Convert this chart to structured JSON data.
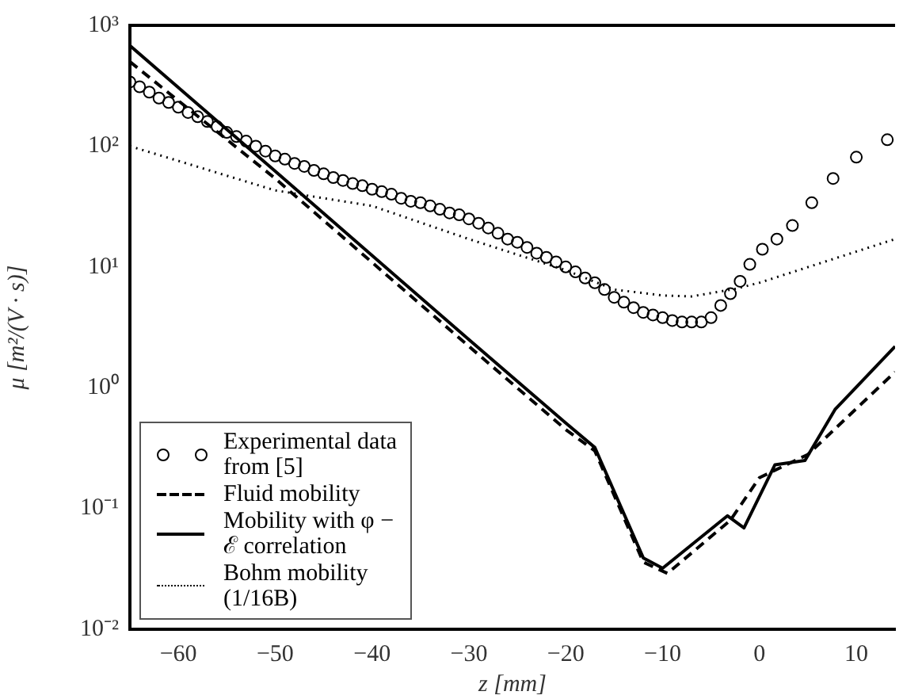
{
  "chart_data": {
    "type": "line",
    "xlabel": "z [mm]",
    "ylabel": "μ [m²/(V · s)]",
    "xlim": [
      -65,
      14
    ],
    "xticks": [
      -60,
      -50,
      -40,
      -30,
      -20,
      -10,
      0,
      10
    ],
    "ylim": [
      0.01,
      1000
    ],
    "yticks": [
      {
        "value": 0.01,
        "label": "10⁻²"
      },
      {
        "value": 0.1,
        "label": "10⁻¹"
      },
      {
        "value": 1,
        "label": "10⁰"
      },
      {
        "value": 10,
        "label": "10¹"
      },
      {
        "value": 100,
        "label": "10²"
      },
      {
        "value": 1000,
        "label": "10³"
      }
    ],
    "log": "y",
    "grid": false,
    "legend": "bottom left",
    "series": [
      {
        "name": "Experimental data from [5]",
        "type": "scatter",
        "marker": "circle",
        "color": "#000000",
        "x": [
          -65,
          -64,
          -63,
          -62,
          -61,
          -60,
          -59,
          -58,
          -57,
          -56,
          -55,
          -54,
          -53,
          -52,
          -51,
          -50,
          -49,
          -48,
          -47,
          -46,
          -45,
          -44,
          -43,
          -42,
          -41,
          -40,
          -39,
          -38,
          -37,
          -36,
          -35,
          -34,
          -33,
          -32,
          -31,
          -30,
          -29,
          -28,
          -27,
          -26,
          -25,
          -24,
          -23,
          -22,
          -21,
          -20,
          -19,
          -18,
          -17,
          -16,
          -15,
          -14,
          -13,
          -12,
          -11,
          -10,
          -9,
          -8,
          -7,
          -6,
          -5,
          -4,
          -3,
          -2,
          -1,
          0.3,
          1.8,
          3.4,
          5.4,
          7.6,
          10,
          13.2
        ],
        "values": [
          340,
          310,
          280,
          250,
          230,
          210,
          190,
          175,
          160,
          145,
          130,
          120,
          110,
          100,
          91,
          83,
          78,
          72,
          68,
          63,
          59,
          55,
          52,
          49,
          47,
          44,
          42,
          40,
          37,
          35,
          34,
          32,
          30,
          28,
          27,
          25,
          23,
          21,
          19,
          17,
          16,
          14.5,
          13,
          12,
          11,
          10,
          9.1,
          8.1,
          7.4,
          6.5,
          5.6,
          5.1,
          4.6,
          4.2,
          4,
          3.8,
          3.6,
          3.5,
          3.5,
          3.5,
          3.8,
          4.8,
          6,
          7.6,
          10.5,
          14,
          17,
          22,
          34,
          54,
          81,
          113
        ]
      },
      {
        "name": "Fluid mobility",
        "marker": "none",
        "line_style": "dashed",
        "color": "#000000",
        "x": [
          -65,
          -50,
          -30,
          -20,
          -17,
          -12,
          -9.5,
          -3,
          0,
          5,
          14
        ],
        "values": [
          500,
          54,
          2.2,
          0.45,
          0.3,
          0.036,
          0.029,
          0.08,
          0.18,
          0.28,
          1.35
        ]
      },
      {
        "name": "Mobility with φ − ℰ correlation",
        "marker": "none",
        "line_style": "solid",
        "color": "#000000",
        "x": [
          -65,
          -50,
          -30,
          -20,
          -17,
          -12,
          -10,
          -3.3,
          -1.6,
          1.6,
          4.7,
          7.8,
          14
        ],
        "values": [
          680,
          62,
          2.5,
          0.51,
          0.32,
          0.039,
          0.032,
          0.087,
          0.069,
          0.23,
          0.25,
          0.66,
          2.2
        ]
      },
      {
        "name": "Bohm mobility (1/16B)",
        "marker": "none",
        "line_style": "dotted",
        "color": "#000000",
        "x": [
          -65,
          -50,
          -40,
          -30,
          -20,
          -15,
          -10,
          -7,
          -2.4,
          0,
          14
        ],
        "values": [
          100,
          43,
          32,
          17,
          9.4,
          6.5,
          5.8,
          5.7,
          6.6,
          7.4,
          17
        ]
      }
    ]
  }
}
